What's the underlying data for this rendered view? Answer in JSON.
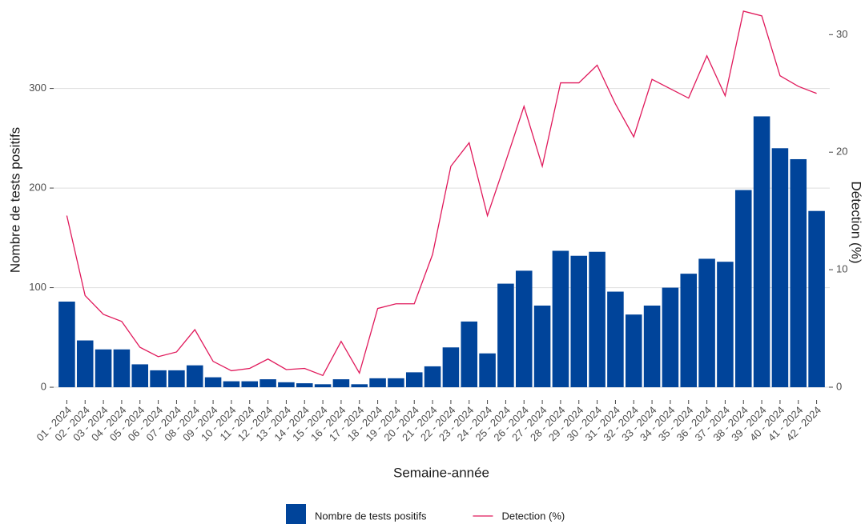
{
  "chart_data": {
    "type": "bar",
    "x_label": "Semaine-année",
    "y_label": "Nombre de tests positifs",
    "y2_label": "Détection (%)",
    "categories": [
      "01 - 2024",
      "02 - 2024",
      "03 - 2024",
      "04 - 2024",
      "05 - 2024",
      "06 - 2024",
      "07 - 2024",
      "08 - 2024",
      "09 - 2024",
      "10 - 2024",
      "11 - 2024",
      "12 - 2024",
      "13 - 2024",
      "14 - 2024",
      "15 - 2024",
      "16 - 2024",
      "17 - 2024",
      "18 - 2024",
      "19 - 2024",
      "20 - 2024",
      "21 - 2024",
      "22 - 2024",
      "23 - 2024",
      "24 - 2024",
      "25 - 2024",
      "26 - 2024",
      "27 - 2024",
      "28 - 2024",
      "29 - 2024",
      "30 - 2024",
      "31 - 2024",
      "32 - 2024",
      "33 - 2024",
      "34 - 2024",
      "35 - 2024",
      "36 - 2024",
      "37 - 2024",
      "38 - 2024",
      "39 - 2024",
      "40 - 2024",
      "41 - 2024",
      "42 - 2024"
    ],
    "series": [
      {
        "name": "Nombre de tests positifs",
        "type": "bar",
        "color": "#00449a",
        "values": [
          86,
          47,
          38,
          38,
          23,
          17,
          17,
          22,
          10,
          6,
          6,
          8,
          5,
          4,
          3,
          8,
          3,
          9,
          9,
          15,
          21,
          40,
          66,
          34,
          104,
          117,
          82,
          137,
          132,
          136,
          96,
          73,
          82,
          100,
          114,
          129,
          126,
          198,
          272,
          240,
          229,
          177
        ]
      },
      {
        "name": "Detection (%)",
        "type": "line",
        "color": "#e0195b",
        "axis": "y2",
        "values": [
          14.6,
          7.8,
          6.2,
          5.6,
          3.4,
          2.6,
          3.0,
          4.9,
          2.2,
          1.4,
          1.6,
          2.4,
          1.5,
          1.6,
          1.0,
          3.9,
          1.2,
          6.7,
          7.1,
          7.1,
          11.3,
          18.8,
          20.8,
          14.6,
          19.2,
          23.9,
          18.8,
          25.9,
          25.9,
          27.4,
          24.1,
          21.3,
          26.2,
          25.4,
          24.6,
          28.2,
          24.8,
          32.0,
          31.6,
          26.5,
          25.6,
          25.0
        ]
      }
    ],
    "ylim": [
      -10,
      380
    ],
    "yticks": [
      0,
      100,
      200,
      300
    ],
    "y2lim": [
      -0.85,
      32.2
    ],
    "y2ticks": [
      0,
      10,
      20,
      30
    ],
    "grid": true,
    "legend": "bottom"
  }
}
